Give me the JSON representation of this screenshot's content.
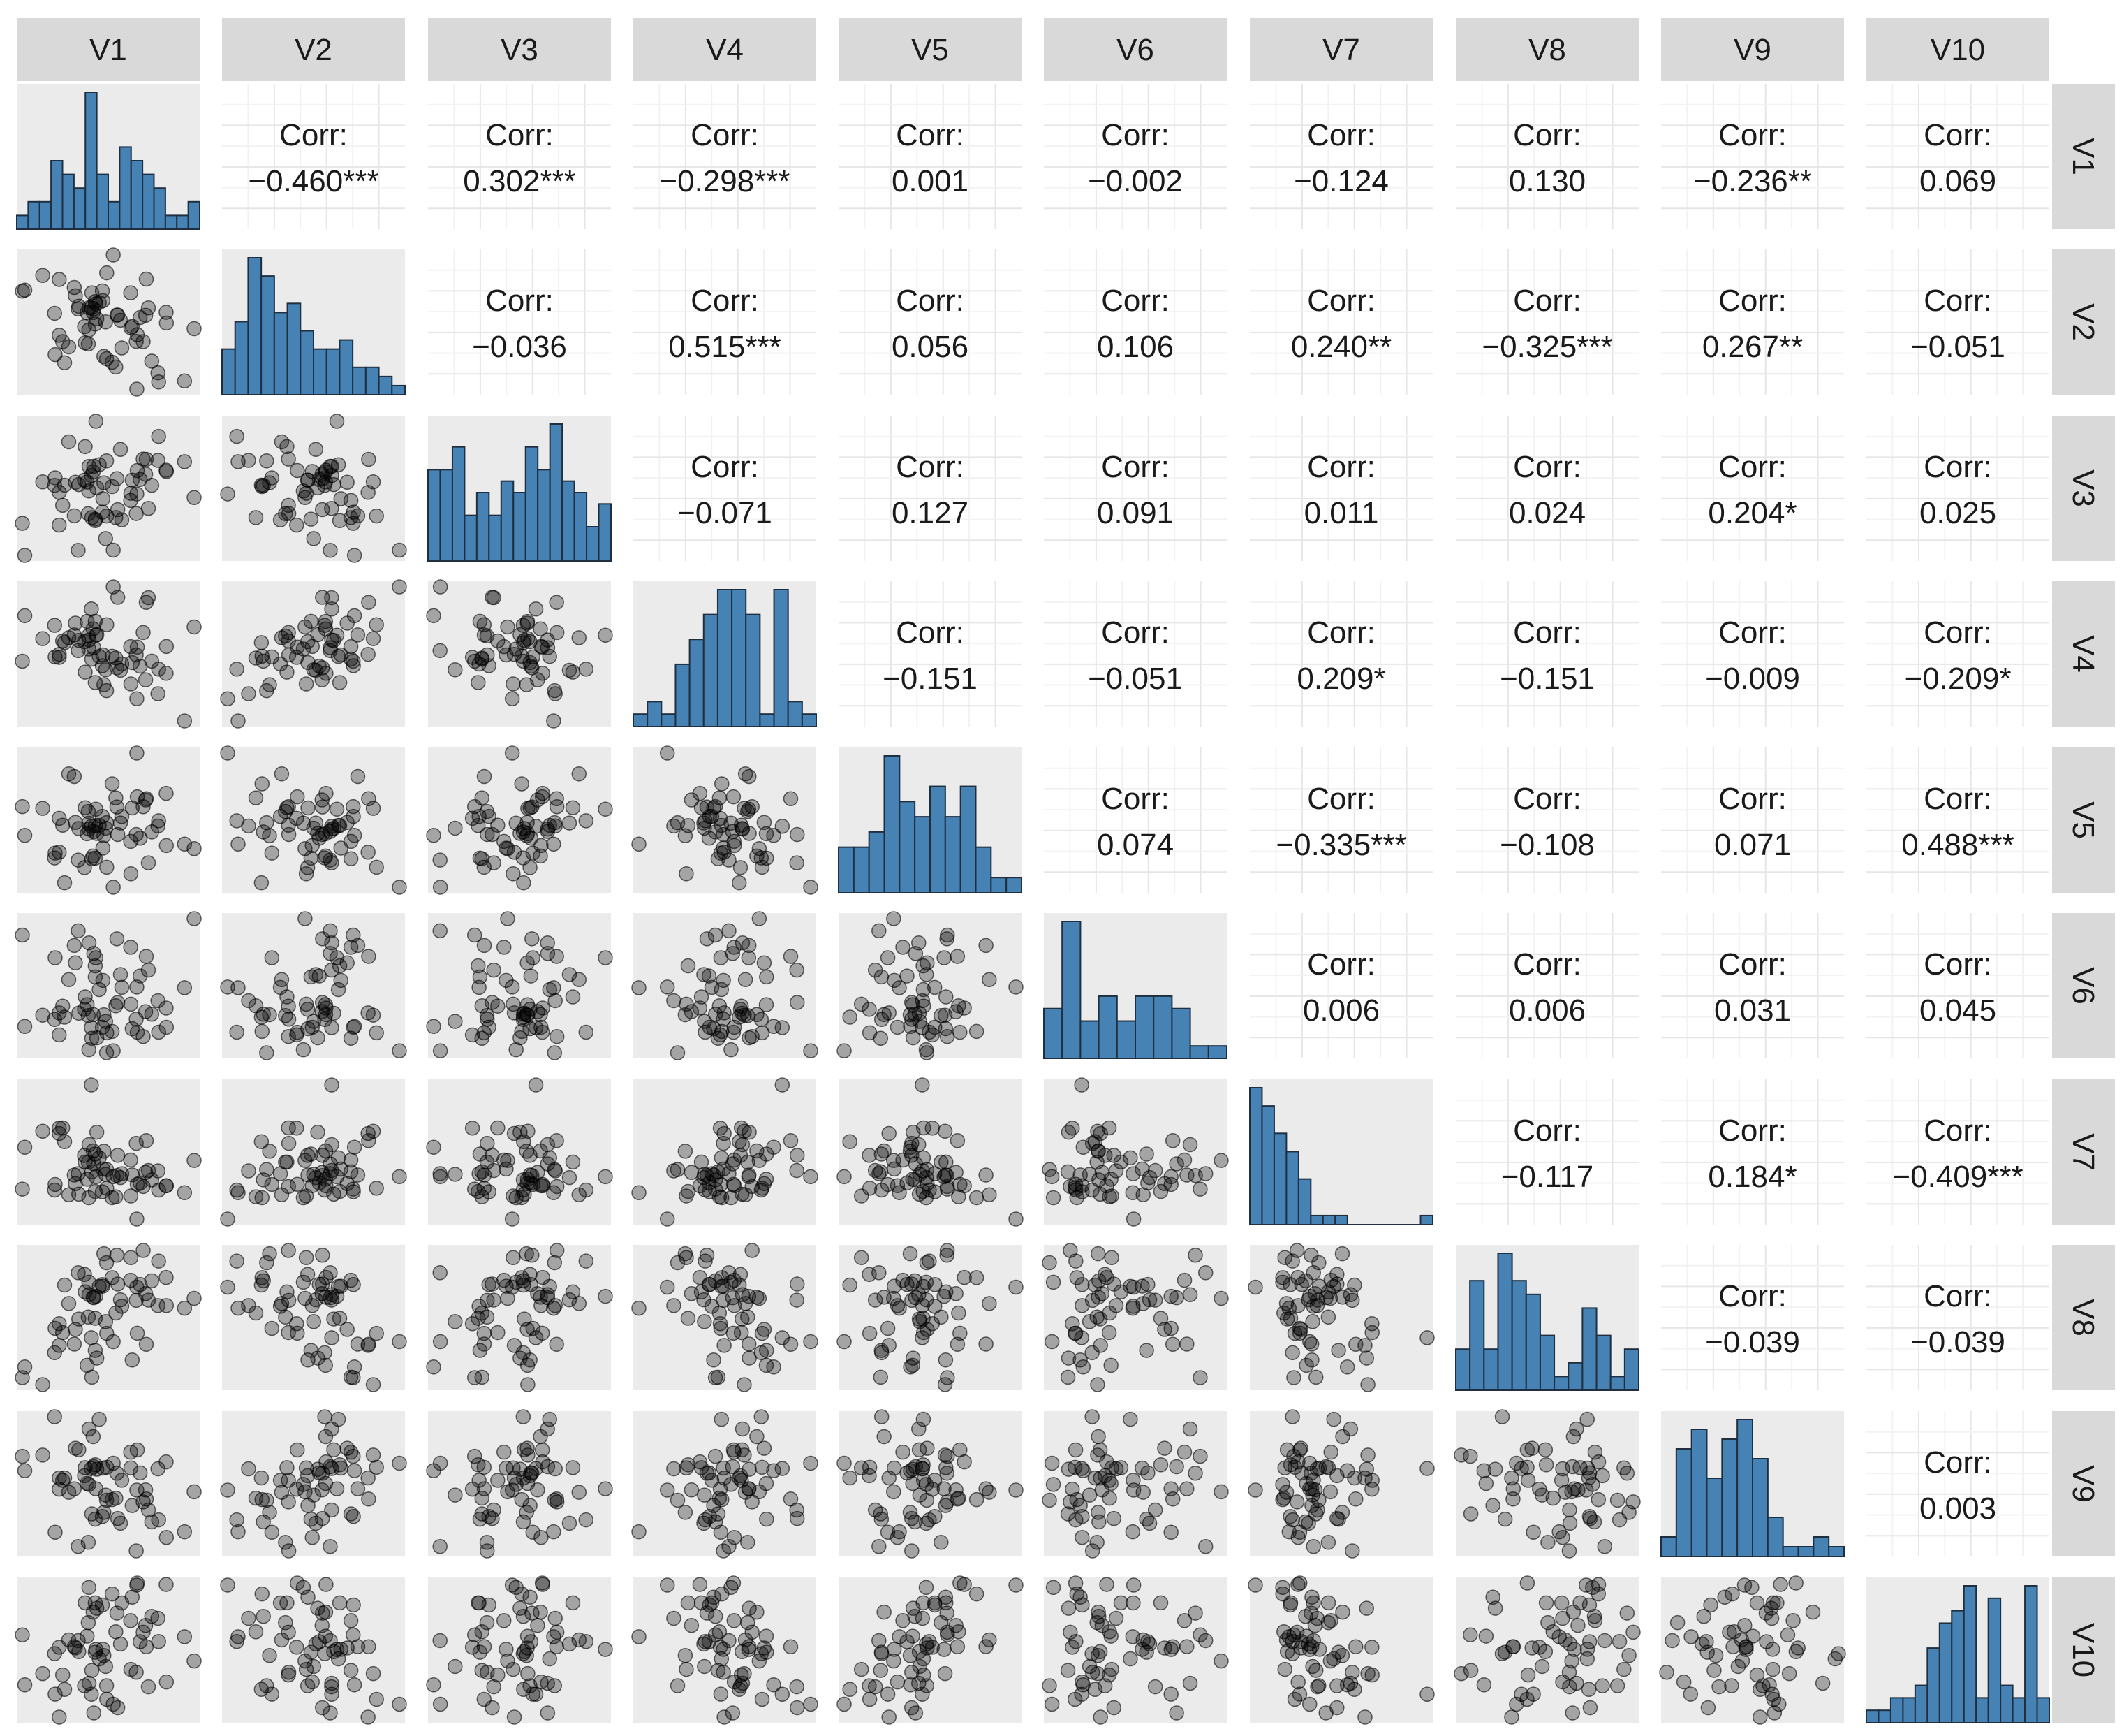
{
  "chart_data": {
    "type": "scatter",
    "variables": [
      "V1",
      "V2",
      "V3",
      "V4",
      "V5",
      "V6",
      "V7",
      "V8",
      "V9",
      "V10"
    ],
    "corr_label": "Corr:",
    "correlations": [
      {
        "row": "V1",
        "col": "V2",
        "value": "−0.460***"
      },
      {
        "row": "V1",
        "col": "V3",
        "value": "0.302***"
      },
      {
        "row": "V1",
        "col": "V4",
        "value": "−0.298***"
      },
      {
        "row": "V1",
        "col": "V5",
        "value": "0.001"
      },
      {
        "row": "V1",
        "col": "V6",
        "value": "−0.002"
      },
      {
        "row": "V1",
        "col": "V7",
        "value": "−0.124"
      },
      {
        "row": "V1",
        "col": "V8",
        "value": "0.130"
      },
      {
        "row": "V1",
        "col": "V9",
        "value": "−0.236**"
      },
      {
        "row": "V1",
        "col": "V10",
        "value": "0.069"
      },
      {
        "row": "V2",
        "col": "V3",
        "value": "−0.036"
      },
      {
        "row": "V2",
        "col": "V4",
        "value": "0.515***"
      },
      {
        "row": "V2",
        "col": "V5",
        "value": "0.056"
      },
      {
        "row": "V2",
        "col": "V6",
        "value": "0.106"
      },
      {
        "row": "V2",
        "col": "V7",
        "value": "0.240**"
      },
      {
        "row": "V2",
        "col": "V8",
        "value": "−0.325***"
      },
      {
        "row": "V2",
        "col": "V9",
        "value": "0.267**"
      },
      {
        "row": "V2",
        "col": "V10",
        "value": "−0.051"
      },
      {
        "row": "V3",
        "col": "V4",
        "value": "−0.071"
      },
      {
        "row": "V3",
        "col": "V5",
        "value": "0.127"
      },
      {
        "row": "V3",
        "col": "V6",
        "value": "0.091"
      },
      {
        "row": "V3",
        "col": "V7",
        "value": "0.011"
      },
      {
        "row": "V3",
        "col": "V8",
        "value": "0.024"
      },
      {
        "row": "V3",
        "col": "V9",
        "value": "0.204*"
      },
      {
        "row": "V3",
        "col": "V10",
        "value": "0.025"
      },
      {
        "row": "V4",
        "col": "V5",
        "value": "−0.151"
      },
      {
        "row": "V4",
        "col": "V6",
        "value": "−0.051"
      },
      {
        "row": "V4",
        "col": "V7",
        "value": "0.209*"
      },
      {
        "row": "V4",
        "col": "V8",
        "value": "−0.151"
      },
      {
        "row": "V4",
        "col": "V9",
        "value": "−0.009"
      },
      {
        "row": "V4",
        "col": "V10",
        "value": "−0.209*"
      },
      {
        "row": "V5",
        "col": "V6",
        "value": "0.074"
      },
      {
        "row": "V5",
        "col": "V7",
        "value": "−0.335***"
      },
      {
        "row": "V5",
        "col": "V8",
        "value": "−0.108"
      },
      {
        "row": "V5",
        "col": "V9",
        "value": "0.071"
      },
      {
        "row": "V5",
        "col": "V10",
        "value": "0.488***"
      },
      {
        "row": "V6",
        "col": "V7",
        "value": "0.006"
      },
      {
        "row": "V6",
        "col": "V8",
        "value": "0.006"
      },
      {
        "row": "V6",
        "col": "V9",
        "value": "0.031"
      },
      {
        "row": "V6",
        "col": "V10",
        "value": "0.045"
      },
      {
        "row": "V7",
        "col": "V8",
        "value": "−0.117"
      },
      {
        "row": "V7",
        "col": "V9",
        "value": "0.184*"
      },
      {
        "row": "V7",
        "col": "V10",
        "value": "−0.409***"
      },
      {
        "row": "V8",
        "col": "V9",
        "value": "−0.039"
      },
      {
        "row": "V8",
        "col": "V10",
        "value": "−0.039"
      },
      {
        "row": "V9",
        "col": "V10",
        "value": "0.003"
      }
    ],
    "histograms": {
      "V1": [
        1,
        2,
        2,
        5,
        4,
        3,
        10,
        4,
        2,
        6,
        5,
        4,
        3,
        1,
        1,
        2
      ],
      "V2": [
        5,
        8,
        15,
        13,
        9,
        10,
        7,
        5,
        5,
        6,
        3,
        3,
        2,
        1
      ],
      "V3": [
        8,
        8,
        10,
        4,
        6,
        4,
        7,
        6,
        10,
        8,
        12,
        7,
        6,
        3,
        5
      ],
      "V4": [
        1,
        2,
        1,
        5,
        7,
        9,
        11,
        11,
        9,
        1,
        11,
        2,
        1
      ],
      "V5": [
        3,
        3,
        4,
        9,
        6,
        5,
        7,
        5,
        7,
        3,
        1,
        1
      ],
      "V6": [
        4,
        11,
        3,
        5,
        3,
        5,
        5,
        4,
        1,
        1
      ],
      "V7": [
        15,
        13,
        10,
        8,
        5,
        1,
        1,
        1,
        0,
        0,
        0,
        0,
        0,
        0,
        1
      ],
      "V8": [
        3,
        8,
        3,
        10,
        8,
        7,
        4,
        1,
        2,
        6,
        4,
        1,
        3
      ],
      "V9": [
        2,
        11,
        13,
        8,
        12,
        14,
        10,
        4,
        1,
        1,
        2,
        1
      ],
      "V10": [
        1,
        1,
        2,
        2,
        3,
        6,
        8,
        9,
        11,
        2,
        10,
        3,
        2,
        11,
        2
      ]
    },
    "colors": {
      "histogram_fill": "#4682b4",
      "panel_background": "#ebebeb",
      "strip_background": "#d9d9d9",
      "grid_line": "#ebebeb",
      "point_fill": "#000000"
    },
    "points_per_scatter": 60,
    "grid": true
  }
}
